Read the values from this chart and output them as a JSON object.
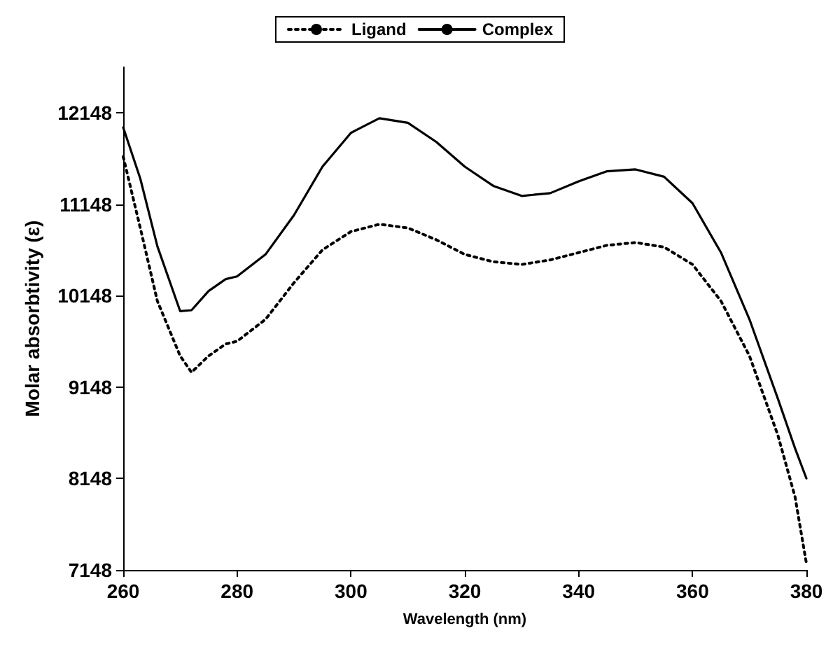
{
  "chart_data": {
    "type": "line",
    "xlabel": "Wavelength (nm)",
    "ylabel": "Molar absorbtivity (ε)",
    "x": [
      260,
      263,
      266,
      270,
      272,
      275,
      278,
      280,
      285,
      290,
      295,
      300,
      305,
      310,
      315,
      320,
      325,
      330,
      335,
      340,
      345,
      350,
      355,
      360,
      365,
      370,
      375,
      378,
      380
    ],
    "series": [
      {
        "name": "Ligand",
        "color": "#000000",
        "line_style": "dotted",
        "values": [
          11670,
          10890,
          10090,
          9490,
          9310,
          9490,
          9620,
          9650,
          9890,
          10290,
          10650,
          10850,
          10930,
          10890,
          10760,
          10600,
          10520,
          10490,
          10540,
          10620,
          10700,
          10730,
          10680,
          10490,
          10090,
          9490,
          8620,
          7950,
          7220
        ]
      },
      {
        "name": "Complex",
        "color": "#000000",
        "line_style": "solid",
        "values": [
          11990,
          11430,
          10690,
          9980,
          9990,
          10200,
          10330,
          10360,
          10600,
          11030,
          11560,
          11930,
          12090,
          12040,
          11830,
          11560,
          11350,
          11240,
          11270,
          11400,
          11510,
          11530,
          11450,
          11160,
          10620,
          9890,
          9020,
          8480,
          8150
        ]
      }
    ],
    "xlim": [
      260,
      380
    ],
    "xticks": [
      260,
      280,
      300,
      320,
      340,
      360,
      380
    ],
    "ylim": [
      7148,
      12648
    ],
    "yticks": [
      7148,
      8148,
      9148,
      10148,
      11148,
      12148
    ],
    "grid": false,
    "legend": "top",
    "marker": "none"
  }
}
